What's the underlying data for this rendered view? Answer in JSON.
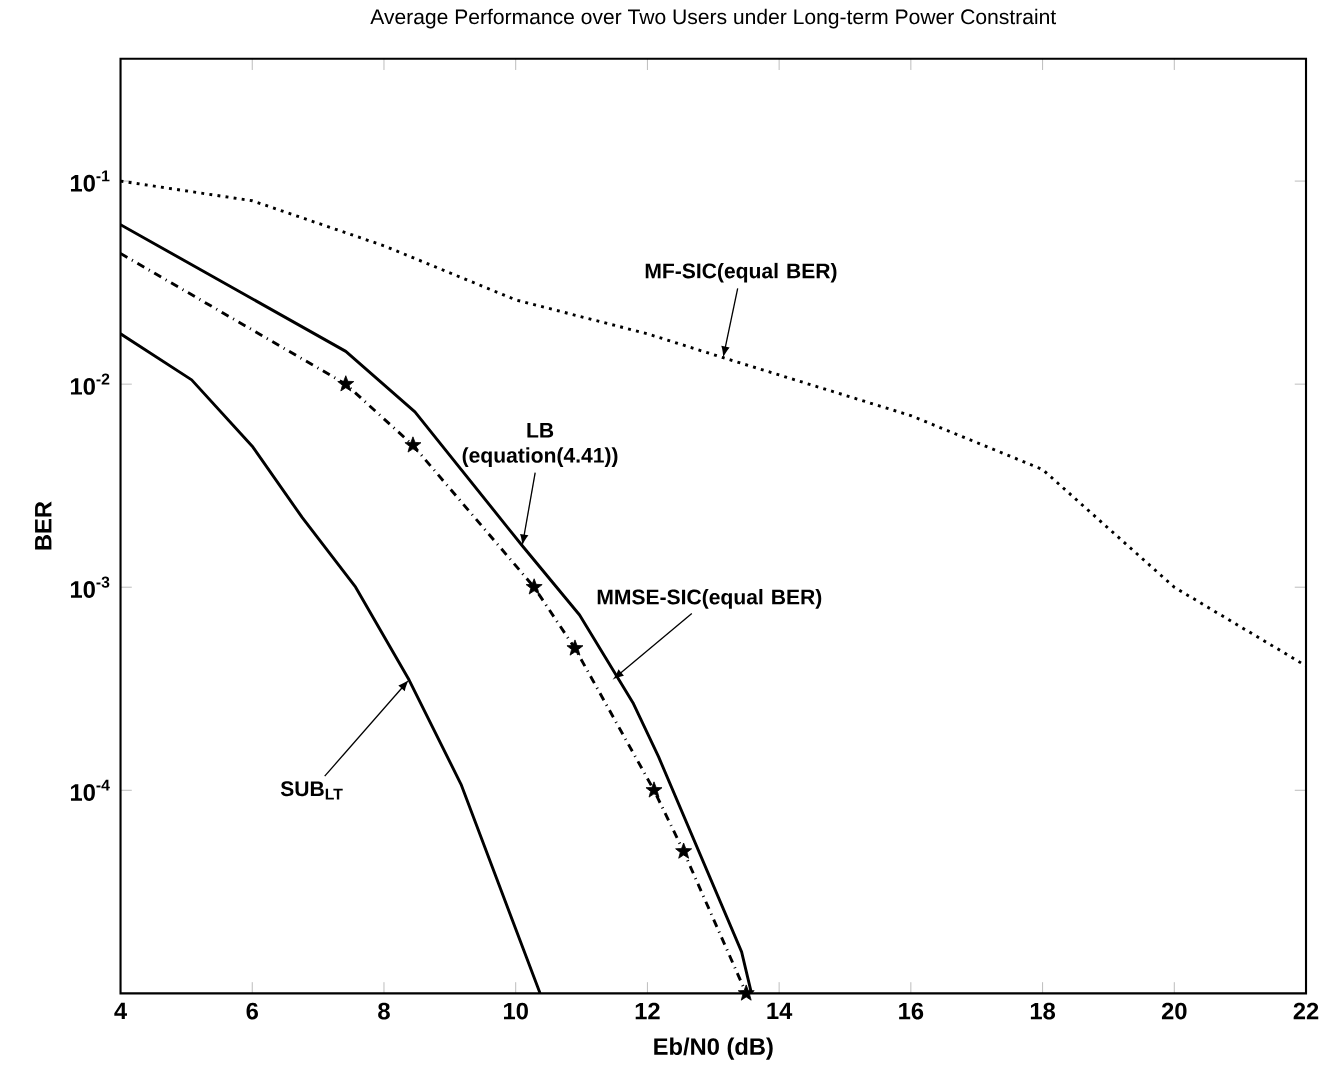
{
  "chart_data": {
    "type": "line",
    "title": "Average Performance over Two Users under Long-term Power Constraint",
    "xlabel": "Eb/N0 (dB)",
    "ylabel": "BER",
    "log": "y",
    "xlim": [
      4,
      22
    ],
    "ylim": [
      1e-05,
      0.4
    ],
    "xticks": [
      4,
      6,
      8,
      10,
      12,
      14,
      16,
      18,
      20,
      22
    ],
    "yticks": [
      {
        "value": 0.1,
        "label": "10$^{-1}$"
      },
      {
        "value": 0.01,
        "label": "10$^{-2}$"
      },
      {
        "value": 0.001,
        "label": "10$^{-3}$"
      },
      {
        "value": 0.0001,
        "label": "10$^{-4}$"
      }
    ],
    "series": [
      {
        "color": "#000000",
        "line_style": "dotted",
        "marker": "none",
        "x": [
          4,
          6,
          8,
          10,
          12,
          13.15,
          16,
          18,
          20,
          22
        ],
        "values": [
          0.1,
          0.08,
          0.048,
          0.026,
          0.0177,
          0.0135,
          0.007,
          0.0038,
          0.001,
          0.00041
        ]
      },
      {
        "color": "#000000",
        "line_style": "solid",
        "marker": "none",
        "x": [
          4,
          7.42,
          8.47,
          10.1,
          10.97,
          11.78,
          12.17,
          13.43,
          13.58
        ],
        "values": [
          0.061,
          0.0145,
          0.0073,
          0.0016,
          0.00073,
          0.00027,
          0.000146,
          1.6e-05,
          1e-05
        ]
      },
      {
        "color": "#000000",
        "line_style": "dashdot",
        "marker": "none",
        "x": [
          4,
          7.42,
          8.44,
          10.28,
          10.9,
          12.1,
          12.55,
          13.5
        ],
        "values": [
          0.044,
          0.01,
          0.005,
          0.001,
          0.0005,
          0.0001,
          5e-05,
          1e-05
        ]
      },
      {
        "type": "scatter",
        "color": "#000000",
        "marker": "star",
        "x": [
          7.42,
          8.44,
          10.28,
          10.9,
          12.1,
          12.55,
          13.5
        ],
        "values": [
          0.01,
          0.005,
          0.001,
          0.0005,
          0.0001,
          5e-05,
          1e-05
        ]
      },
      {
        "color": "#000000",
        "line_style": "solid",
        "marker": "none",
        "x": [
          4,
          5.08,
          6.01,
          6.76,
          7.57,
          8.38,
          9.17,
          10.37
        ],
        "values": [
          0.0177,
          0.0105,
          0.0049,
          0.0022,
          0.001,
          0.00035,
          0.000107,
          1e-05
        ]
      }
    ],
    "annotations": [
      {
        "text": "MF-SIC(equal BER)",
        "x": 13.15,
        "y": 0.0135
      },
      {
        "text": "LB (equation(4.41))",
        "x": 10.1,
        "y": 0.0016
      },
      {
        "text": "MMSE-SIC(equal BER)",
        "x": 11.47,
        "y": 0.00035
      },
      {
        "text": "SUB$_{LT}$",
        "x": 8.38,
        "y": 0.00035
      }
    ]
  }
}
